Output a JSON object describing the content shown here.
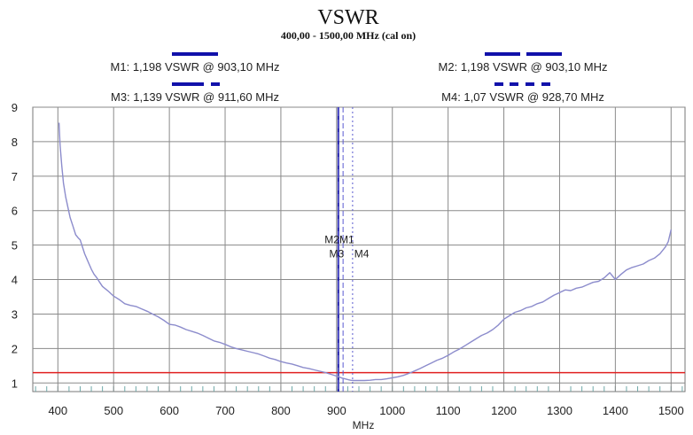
{
  "chart_data": {
    "type": "line",
    "title": "VSWR",
    "subtitle": "400,00 - 1500,00 MHz (cal on)",
    "xlabel": "MHz",
    "ylabel": "",
    "xlim": [
      355,
      1525
    ],
    "ylim": [
      0.75,
      9
    ],
    "grid": true,
    "x_ticks": [
      "400",
      "500",
      "600",
      "700",
      "800",
      "900",
      "1000",
      "1100",
      "1200",
      "1300",
      "1400",
      "1500"
    ],
    "y_ticks": [
      "1",
      "2",
      "3",
      "4",
      "5",
      "6",
      "7",
      "8",
      "9"
    ],
    "reference_line": {
      "value": 1.3,
      "color": "#e02020"
    },
    "markers": [
      {
        "id": "M1",
        "label": "M1: 1,198 VSWR @ 903,10 MHz",
        "freq": 903.1,
        "vswr": 1.198,
        "line_style": "solid"
      },
      {
        "id": "M2",
        "label": "M2: 1,198 VSWR @ 903,10 MHz",
        "freq": 903.1,
        "vswr": 1.198,
        "line_style": "long-dash"
      },
      {
        "id": "M3",
        "label": "M3: 1,139 VSWR @ 911,60 MHz",
        "freq": 911.6,
        "vswr": 1.139,
        "line_style": "dash"
      },
      {
        "id": "M4",
        "label": "M4: 1,07 VSWR @ 928,70 MHz",
        "freq": 928.7,
        "vswr": 1.07,
        "line_style": "dotted"
      }
    ],
    "marker_tags": [
      {
        "text": "M2M1",
        "freq": 905,
        "vswr": 5.05
      },
      {
        "text": "M3",
        "freq": 900,
        "vswr": 4.65
      },
      {
        "text": "M4",
        "freq": 945,
        "vswr": 4.65
      }
    ],
    "series": [
      {
        "color": "#8c8ccc",
        "x": [
          402,
          404,
          407,
          410,
          414,
          418,
          422,
          427,
          432,
          437,
          440,
          444,
          448,
          452,
          456,
          460,
          465,
          470,
          475,
          480,
          490,
          500,
          510,
          520,
          530,
          540,
          550,
          560,
          570,
          580,
          590,
          600,
          610,
          620,
          630,
          640,
          650,
          660,
          670,
          680,
          690,
          700,
          710,
          720,
          730,
          740,
          750,
          760,
          770,
          780,
          790,
          800,
          810,
          820,
          830,
          840,
          850,
          860,
          870,
          880,
          890,
          900,
          905,
          910,
          915,
          920,
          925,
          930,
          940,
          950,
          960,
          970,
          980,
          990,
          1000,
          1010,
          1020,
          1030,
          1040,
          1050,
          1060,
          1070,
          1080,
          1090,
          1100,
          1110,
          1120,
          1130,
          1140,
          1150,
          1160,
          1170,
          1180,
          1190,
          1200,
          1210,
          1220,
          1230,
          1240,
          1250,
          1260,
          1270,
          1280,
          1290,
          1300,
          1310,
          1320,
          1330,
          1340,
          1350,
          1360,
          1370,
          1380,
          1390,
          1400,
          1410,
          1420,
          1430,
          1440,
          1450,
          1460,
          1470,
          1480,
          1490,
          1495,
          1500
        ],
        "y": [
          8.55,
          7.9,
          7.3,
          6.8,
          6.4,
          6.1,
          5.8,
          5.55,
          5.3,
          5.2,
          5.15,
          4.95,
          4.75,
          4.6,
          4.45,
          4.3,
          4.15,
          4.05,
          3.92,
          3.8,
          3.67,
          3.52,
          3.42,
          3.3,
          3.25,
          3.22,
          3.15,
          3.08,
          3.0,
          2.92,
          2.82,
          2.7,
          2.68,
          2.62,
          2.55,
          2.5,
          2.45,
          2.38,
          2.3,
          2.22,
          2.18,
          2.12,
          2.05,
          2.0,
          1.96,
          1.92,
          1.88,
          1.84,
          1.78,
          1.72,
          1.68,
          1.62,
          1.58,
          1.55,
          1.5,
          1.45,
          1.42,
          1.38,
          1.34,
          1.3,
          1.25,
          1.2,
          1.17,
          1.14,
          1.12,
          1.1,
          1.08,
          1.07,
          1.07,
          1.07,
          1.08,
          1.1,
          1.1,
          1.12,
          1.15,
          1.18,
          1.22,
          1.28,
          1.35,
          1.42,
          1.5,
          1.58,
          1.66,
          1.72,
          1.8,
          1.9,
          1.98,
          2.08,
          2.18,
          2.28,
          2.38,
          2.45,
          2.55,
          2.68,
          2.85,
          2.95,
          3.05,
          3.1,
          3.18,
          3.22,
          3.3,
          3.35,
          3.45,
          3.55,
          3.62,
          3.7,
          3.68,
          3.75,
          3.78,
          3.85,
          3.92,
          3.95,
          4.05,
          4.2,
          4.0,
          4.15,
          4.28,
          4.35,
          4.4,
          4.45,
          4.55,
          4.62,
          4.75,
          4.95,
          5.1,
          5.45
        ]
      }
    ]
  }
}
